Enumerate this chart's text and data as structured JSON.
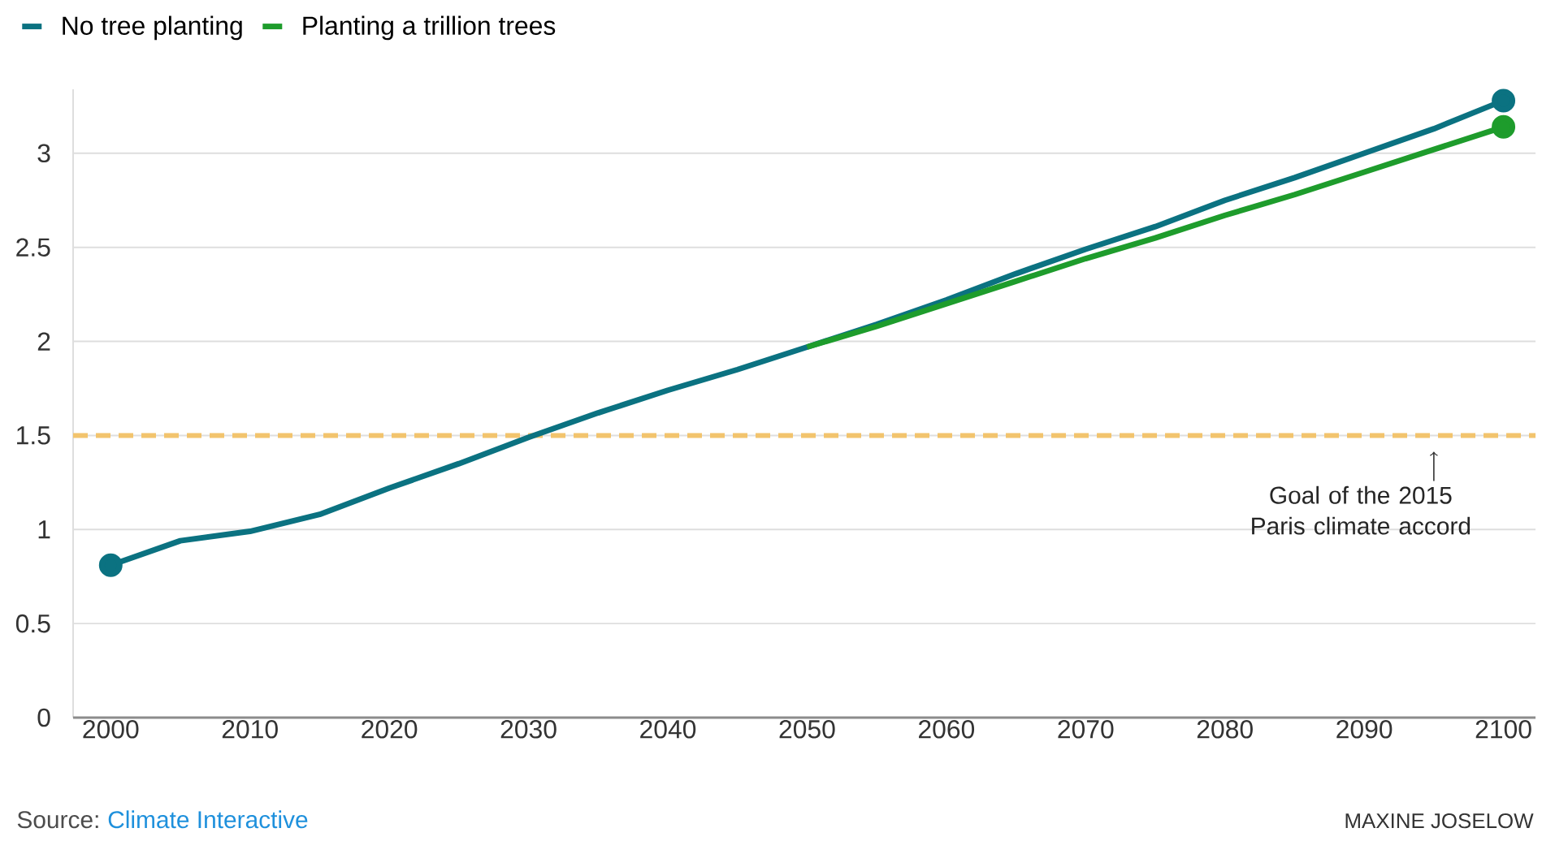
{
  "chart_data": {
    "type": "line",
    "series": [
      {
        "name": "No tree planting",
        "color": "#0b7281",
        "x": [
          2000,
          2005,
          2010,
          2015,
          2020,
          2025,
          2030,
          2035,
          2040,
          2045,
          2050,
          2055,
          2060,
          2065,
          2070,
          2075,
          2080,
          2085,
          2090,
          2095,
          2100
        ],
        "values": [
          0.81,
          0.94,
          0.99,
          1.08,
          1.22,
          1.35,
          1.49,
          1.62,
          1.74,
          1.85,
          1.97,
          2.09,
          2.22,
          2.36,
          2.49,
          2.61,
          2.75,
          2.87,
          3.0,
          3.13,
          3.28
        ]
      },
      {
        "name": "Planting a trillion trees",
        "color": "#1e9c2c",
        "x": [
          2050,
          2055,
          2060,
          2065,
          2070,
          2075,
          2080,
          2085,
          2090,
          2095,
          2100
        ],
        "values": [
          1.97,
          2.08,
          2.2,
          2.32,
          2.44,
          2.55,
          2.67,
          2.78,
          2.9,
          3.02,
          3.14
        ]
      }
    ],
    "xlim": [
      1997.3,
      2102.3
    ],
    "xticks": [
      2000,
      2010,
      2020,
      2030,
      2040,
      2050,
      2060,
      2070,
      2080,
      2090,
      2100
    ],
    "ylim": [
      0,
      3.34
    ],
    "yticks": [
      0,
      0.5,
      1,
      1.5,
      2,
      2.5,
      3
    ],
    "grid": "y",
    "legend": "top left",
    "line_style": "solid",
    "ref_lines": [
      {
        "axis": "y",
        "value": 1.5,
        "color": "#f2c46d",
        "line_style": "dashed"
      }
    ],
    "annotations": [
      {
        "text": "Goal of the 2015 Paris climate accord",
        "x": 2095,
        "y": 1.5
      },
      "Source:",
      "Climate Interactive",
      "MAXINE JOSELOW"
    ]
  }
}
